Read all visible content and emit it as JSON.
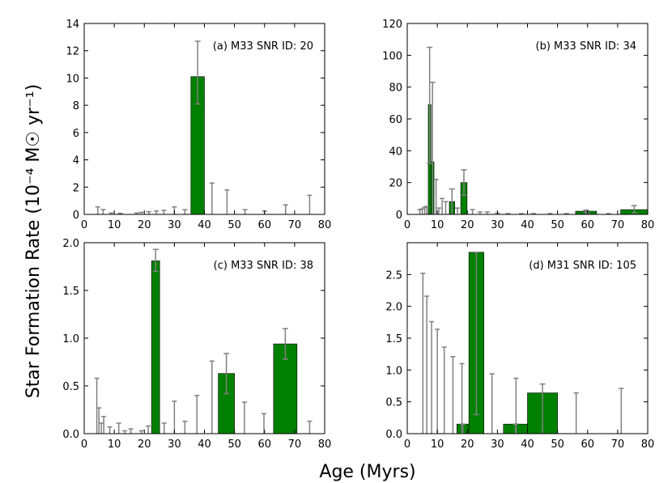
{
  "figure": {
    "ylabel": "Star Formation Rate (10⁻⁴ M☉ yr⁻¹)",
    "xlabel": "Age (Myrs)"
  },
  "chart_data": [
    {
      "type": "bar",
      "title": "(a) M33 SNR ID: 20",
      "xlim": [
        0,
        80
      ],
      "ylim": [
        0,
        14
      ],
      "xticks": [
        0,
        10,
        20,
        30,
        40,
        50,
        60,
        70,
        80
      ],
      "yticks": [
        0,
        2,
        4,
        6,
        8,
        10,
        12,
        14
      ],
      "ytick_labels": [
        "0",
        "2",
        "4",
        "6",
        "8",
        "10",
        "12",
        "14"
      ],
      "bars": [
        {
          "x0": 35.5,
          "x1": 40,
          "value": 10.1,
          "err_lo": 8.1,
          "err_hi": 12.7
        }
      ],
      "upper_limits": [
        {
          "x": 4.5,
          "value": 0.55
        },
        {
          "x": 6.3,
          "value": 0.35
        },
        {
          "x": 9,
          "value": 0.1
        },
        {
          "x": 12,
          "value": 0.08
        },
        {
          "x": 17.5,
          "value": 0.1
        },
        {
          "x": 19,
          "value": 0.15
        },
        {
          "x": 21.5,
          "value": 0.2
        },
        {
          "x": 24,
          "value": 0.25
        },
        {
          "x": 26.5,
          "value": 0.3
        },
        {
          "x": 30,
          "value": 0.55
        },
        {
          "x": 33.5,
          "value": 0.35
        },
        {
          "x": 42.5,
          "value": 2.3
        },
        {
          "x": 47.5,
          "value": 1.8
        },
        {
          "x": 53.5,
          "value": 0.35
        },
        {
          "x": 60,
          "value": 0.25
        },
        {
          "x": 67,
          "value": 0.7
        },
        {
          "x": 75,
          "value": 1.4
        }
      ]
    },
    {
      "type": "bar",
      "title": "(b) M33 SNR ID: 34",
      "xlim": [
        0,
        80
      ],
      "ylim": [
        0,
        120
      ],
      "xticks": [
        0,
        10,
        20,
        30,
        40,
        50,
        60,
        70,
        80
      ],
      "yticks": [
        0,
        20,
        40,
        60,
        80,
        100,
        120
      ],
      "ytick_labels": [
        "0",
        "20",
        "40",
        "60",
        "80",
        "100",
        "120"
      ],
      "bars": [
        {
          "x0": 7.0,
          "x1": 7.9,
          "value": 69,
          "err_lo": 32,
          "err_hi": 105
        },
        {
          "x0": 7.9,
          "x1": 8.9,
          "value": 33,
          "err_lo": 0,
          "err_hi": 83
        },
        {
          "x0": 14.0,
          "x1": 15.8,
          "value": 8,
          "err_lo": 0,
          "err_hi": 16
        },
        {
          "x0": 17.8,
          "x1": 19.9,
          "value": 20,
          "err_lo": 12,
          "err_hi": 28
        },
        {
          "x0": 56.0,
          "x1": 63.0,
          "value": 2,
          "err_lo": 1.3,
          "err_hi": 2.7
        },
        {
          "x0": 71.0,
          "x1": 80.0,
          "value": 3,
          "err_lo": 1,
          "err_hi": 5.5
        }
      ],
      "upper_limits": [
        {
          "x": 4.2,
          "value": 3
        },
        {
          "x": 5,
          "value": 3.5
        },
        {
          "x": 5.8,
          "value": 4.5
        },
        {
          "x": 6.5,
          "value": 5
        },
        {
          "x": 9.6,
          "value": 22
        },
        {
          "x": 10.5,
          "value": 4
        },
        {
          "x": 11.6,
          "value": 10
        },
        {
          "x": 12.8,
          "value": 8
        },
        {
          "x": 16.7,
          "value": 4
        },
        {
          "x": 21.7,
          "value": 3
        },
        {
          "x": 24.2,
          "value": 1.5
        },
        {
          "x": 26.6,
          "value": 1.5
        },
        {
          "x": 30,
          "value": 0.8
        },
        {
          "x": 33.5,
          "value": 0.5
        },
        {
          "x": 38,
          "value": 0.5
        },
        {
          "x": 42,
          "value": 0.5
        },
        {
          "x": 47.5,
          "value": 0.5
        },
        {
          "x": 53,
          "value": 0.5
        },
        {
          "x": 60,
          "value": 0.5
        },
        {
          "x": 67,
          "value": 0.5
        }
      ]
    },
    {
      "type": "bar",
      "title": "(c) M33 SNR ID: 38",
      "xlim": [
        0,
        80
      ],
      "ylim": [
        0,
        2.0
      ],
      "xticks": [
        0,
        10,
        20,
        30,
        40,
        50,
        60,
        70,
        80
      ],
      "yticks": [
        0,
        0.5,
        1.0,
        1.5,
        2.0
      ],
      "ytick_labels": [
        "0.0",
        "0.5",
        "1.0",
        "1.5",
        "2.0"
      ],
      "bars": [
        {
          "x0": 22.4,
          "x1": 25.1,
          "value": 1.81,
          "err_lo": 1.7,
          "err_hi": 1.93
        },
        {
          "x0": 44.6,
          "x1": 50.0,
          "value": 0.63,
          "err_lo": 0.42,
          "err_hi": 0.84
        },
        {
          "x0": 63.0,
          "x1": 70.8,
          "value": 0.94,
          "err_lo": 0.78,
          "err_hi": 1.1
        }
      ],
      "upper_limits": [
        {
          "x": 4.2,
          "value": 0.58
        },
        {
          "x": 4.9,
          "value": 0.27
        },
        {
          "x": 5.7,
          "value": 0.11
        },
        {
          "x": 6.5,
          "value": 0.18
        },
        {
          "x": 8.5,
          "value": 0.07
        },
        {
          "x": 11.5,
          "value": 0.11
        },
        {
          "x": 13.5,
          "value": 0.03
        },
        {
          "x": 15.5,
          "value": 0.05
        },
        {
          "x": 19,
          "value": 0.03
        },
        {
          "x": 21.3,
          "value": 0.08
        },
        {
          "x": 26.6,
          "value": 0.11
        },
        {
          "x": 30,
          "value": 0.34
        },
        {
          "x": 33.5,
          "value": 0.13
        },
        {
          "x": 37.5,
          "value": 0.4
        },
        {
          "x": 42.5,
          "value": 0.76
        },
        {
          "x": 53.3,
          "value": 0.33
        },
        {
          "x": 59.8,
          "value": 0.21
        },
        {
          "x": 75,
          "value": 0.13
        }
      ]
    },
    {
      "type": "bar",
      "title": "(d) M31 SNR ID: 105",
      "xlim": [
        0,
        80
      ],
      "ylim": [
        0,
        3.0
      ],
      "xticks": [
        0,
        10,
        20,
        30,
        40,
        50,
        60,
        70,
        80
      ],
      "yticks": [
        0,
        0.5,
        1.0,
        1.5,
        2.0,
        2.5
      ],
      "ytick_labels": [
        "0.0",
        "0.5",
        "1.0",
        "1.5",
        "2.0",
        "2.5"
      ],
      "bars": [
        {
          "x0": 16.5,
          "x1": 20.5,
          "value": 0.15,
          "err_lo": 0.0,
          "err_hi": 0.15
        },
        {
          "x0": 20.5,
          "x1": 25.5,
          "value": 2.85,
          "err_lo": 0.3,
          "err_hi": 2.85
        },
        {
          "x0": 32.0,
          "x1": 40.0,
          "value": 0.15,
          "err_lo": 0.0,
          "err_hi": 0.15
        },
        {
          "x0": 40.0,
          "x1": 50.0,
          "value": 0.64,
          "err_lo": 0.0,
          "err_hi": 0.78
        }
      ],
      "upper_limits": [
        {
          "x": 5.2,
          "value": 2.52
        },
        {
          "x": 6.5,
          "value": 2.16
        },
        {
          "x": 8.1,
          "value": 1.76
        },
        {
          "x": 10,
          "value": 1.64
        },
        {
          "x": 12.3,
          "value": 1.36
        },
        {
          "x": 15.2,
          "value": 1.21
        },
        {
          "x": 18.2,
          "value": 1.1
        },
        {
          "x": 28.2,
          "value": 0.94
        },
        {
          "x": 36.2,
          "value": 0.87
        },
        {
          "x": 56.2,
          "value": 0.64
        },
        {
          "x": 71.2,
          "value": 0.71
        }
      ]
    }
  ]
}
